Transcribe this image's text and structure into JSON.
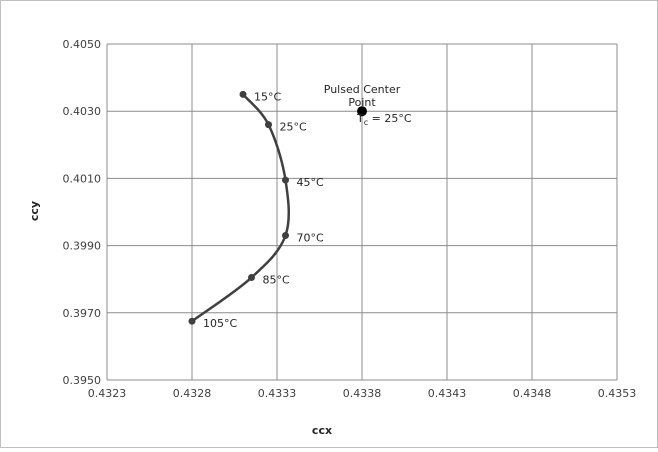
{
  "chart_data": {
    "type": "scatter",
    "title": "",
    "xlabel": "ccx",
    "ylabel": "ccy",
    "xlim": [
      0.4323,
      0.4353
    ],
    "ylim": [
      0.395,
      0.405
    ],
    "x_ticks": [
      "0.4323",
      "0.4328",
      "0.4333",
      "0.4338",
      "0.4343",
      "0.4348",
      "0.4353"
    ],
    "y_ticks": [
      "0.3950",
      "0.3970",
      "0.3990",
      "0.4010",
      "0.4030",
      "0.4050"
    ],
    "grid": true,
    "legend": "none",
    "series": [
      {
        "color": "#404040",
        "line": "smooth",
        "points": [
          {
            "x": 0.4331,
            "y": 0.4035,
            "label": "15°C"
          },
          {
            "x": 0.43325,
            "y": 0.4026,
            "label": "25°C"
          },
          {
            "x": 0.43335,
            "y": 0.40095,
            "label": "45°C"
          },
          {
            "x": 0.43335,
            "y": 0.3993,
            "label": "70°C"
          },
          {
            "x": 0.43315,
            "y": 0.39805,
            "label": "85°C"
          },
          {
            "x": 0.4328,
            "y": 0.39675,
            "label": "105°C"
          }
        ]
      }
    ],
    "reference_point": {
      "x": 0.4338,
      "y": 0.403,
      "label_line1": "Pulsed Center",
      "label_line2": "Point",
      "label_line3_main": "T",
      "label_line3_sub": "c",
      "label_line3_rest": " = 25°C",
      "color": "#000000"
    }
  }
}
